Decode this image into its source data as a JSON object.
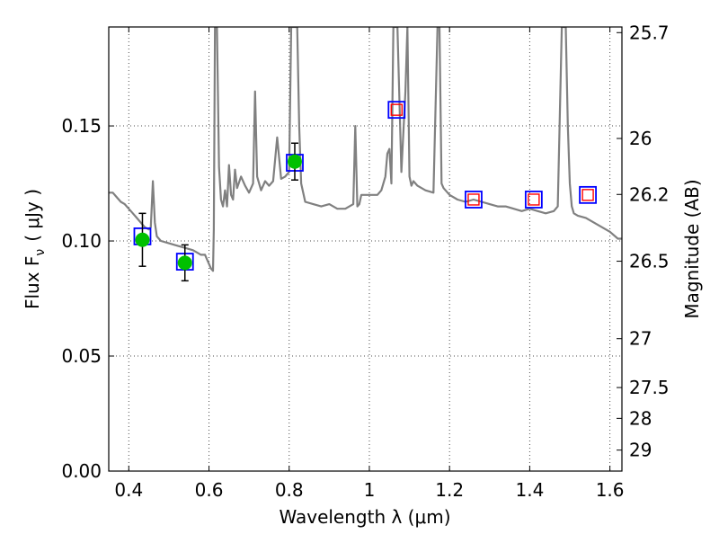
{
  "chart_data": {
    "type": "line",
    "xlabel": "Wavelength  λ (μm)",
    "ylabel": "Flux  F",
    "ylabel_sub": "ν",
    "ylabel_unit": "( μJy )",
    "y2label": "Magnitude (AB)",
    "xlim": [
      0.35,
      1.63
    ],
    "ylim": [
      0.0,
      0.193
    ],
    "grid": true,
    "x_ticks": [
      {
        "value": 0.4,
        "label": "0.4"
      },
      {
        "value": 0.6,
        "label": "0.6"
      },
      {
        "value": 0.8,
        "label": "0.8"
      },
      {
        "value": 1.0,
        "label": "1"
      },
      {
        "value": 1.2,
        "label": "1.2"
      },
      {
        "value": 1.4,
        "label": "1.4"
      },
      {
        "value": 1.6,
        "label": "1.6"
      }
    ],
    "y_ticks": [
      {
        "value": 0.0,
        "label": "0.00"
      },
      {
        "value": 0.05,
        "label": "0.05"
      },
      {
        "value": 0.1,
        "label": "0.10"
      },
      {
        "value": 0.15,
        "label": "0.15"
      }
    ],
    "y2_ticks": [
      {
        "value": 25.7,
        "label": "25.7"
      },
      {
        "value": 26.0,
        "label": "26"
      },
      {
        "value": 26.2,
        "label": "26.2"
      },
      {
        "value": 26.5,
        "label": "26.5"
      },
      {
        "value": 27.0,
        "label": "27"
      },
      {
        "value": 27.5,
        "label": "27.5"
      },
      {
        "value": 28.0,
        "label": "28"
      },
      {
        "value": 29.0,
        "label": "29"
      }
    ],
    "series": [
      {
        "kind": "line",
        "color": "#808080",
        "x": [
          0.35,
          0.36,
          0.37,
          0.38,
          0.39,
          0.4,
          0.41,
          0.42,
          0.43,
          0.44,
          0.45,
          0.455,
          0.46,
          0.465,
          0.47,
          0.48,
          0.5,
          0.52,
          0.54,
          0.56,
          0.57,
          0.58,
          0.59,
          0.6,
          0.605,
          0.61,
          0.612,
          0.615,
          0.62,
          0.625,
          0.63,
          0.635,
          0.64,
          0.645,
          0.65,
          0.655,
          0.66,
          0.665,
          0.67,
          0.68,
          0.69,
          0.7,
          0.71,
          0.715,
          0.72,
          0.73,
          0.74,
          0.75,
          0.76,
          0.77,
          0.78,
          0.79,
          0.8,
          0.805,
          0.81,
          0.815,
          0.82,
          0.825,
          0.83,
          0.84,
          0.86,
          0.88,
          0.9,
          0.92,
          0.94,
          0.96,
          0.965,
          0.97,
          0.975,
          0.98,
          1.0,
          1.02,
          1.03,
          1.04,
          1.045,
          1.05,
          1.055,
          1.06,
          1.07,
          1.08,
          1.09,
          1.095,
          1.1,
          1.105,
          1.11,
          1.12,
          1.14,
          1.16,
          1.17,
          1.175,
          1.18,
          1.185,
          1.19,
          1.2,
          1.22,
          1.24,
          1.26,
          1.28,
          1.3,
          1.32,
          1.34,
          1.36,
          1.38,
          1.4,
          1.42,
          1.44,
          1.46,
          1.47,
          1.48,
          1.49,
          1.495,
          1.5,
          1.505,
          1.51,
          1.52,
          1.54,
          1.56,
          1.58,
          1.6,
          1.62,
          1.63
        ],
        "y": [
          0.121,
          0.121,
          0.119,
          0.117,
          0.116,
          0.114,
          0.112,
          0.11,
          0.108,
          0.106,
          0.105,
          0.106,
          0.126,
          0.108,
          0.102,
          0.1,
          0.099,
          0.098,
          0.097,
          0.096,
          0.095,
          0.094,
          0.094,
          0.09,
          0.088,
          0.087,
          0.105,
          0.193,
          0.193,
          0.132,
          0.118,
          0.115,
          0.122,
          0.115,
          0.133,
          0.12,
          0.118,
          0.131,
          0.123,
          0.128,
          0.124,
          0.121,
          0.125,
          0.165,
          0.128,
          0.122,
          0.126,
          0.124,
          0.126,
          0.145,
          0.127,
          0.128,
          0.13,
          0.193,
          0.193,
          0.193,
          0.193,
          0.15,
          0.125,
          0.117,
          0.116,
          0.115,
          0.116,
          0.114,
          0.114,
          0.116,
          0.15,
          0.115,
          0.116,
          0.12,
          0.12,
          0.12,
          0.122,
          0.128,
          0.138,
          0.14,
          0.125,
          0.193,
          0.193,
          0.13,
          0.165,
          0.193,
          0.128,
          0.124,
          0.126,
          0.124,
          0.122,
          0.121,
          0.193,
          0.193,
          0.125,
          0.123,
          0.122,
          0.12,
          0.118,
          0.117,
          0.118,
          0.117,
          0.116,
          0.115,
          0.115,
          0.114,
          0.113,
          0.114,
          0.113,
          0.112,
          0.113,
          0.115,
          0.193,
          0.193,
          0.15,
          0.125,
          0.115,
          0.112,
          0.111,
          0.11,
          0.108,
          0.106,
          0.104,
          0.101,
          0.101
        ]
      }
    ],
    "points_blue_squares": [
      {
        "x": 0.434,
        "y": 0.102
      },
      {
        "x": 0.54,
        "y": 0.091
      },
      {
        "x": 0.814,
        "y": 0.134
      },
      {
        "x": 1.068,
        "y": 0.157
      },
      {
        "x": 1.26,
        "y": 0.118
      },
      {
        "x": 1.41,
        "y": 0.118
      },
      {
        "x": 1.545,
        "y": 0.12
      }
    ],
    "points_red_squares": [
      {
        "x": 1.068,
        "y": 0.157
      },
      {
        "x": 1.26,
        "y": 0.118
      },
      {
        "x": 1.41,
        "y": 0.118
      },
      {
        "x": 1.545,
        "y": 0.12
      }
    ],
    "points_green_circles": [
      {
        "x": 0.434,
        "y": 0.1005,
        "err": 0.0115
      },
      {
        "x": 0.54,
        "y": 0.0905,
        "err": 0.0078
      },
      {
        "x": 0.814,
        "y": 0.1345,
        "err": 0.008
      }
    ],
    "colors": {
      "model_line": "#808080",
      "blue_square": "#0000ff",
      "red_square": "#ff0000",
      "green_circle": "#00c000",
      "errorbar": "#000000"
    }
  }
}
